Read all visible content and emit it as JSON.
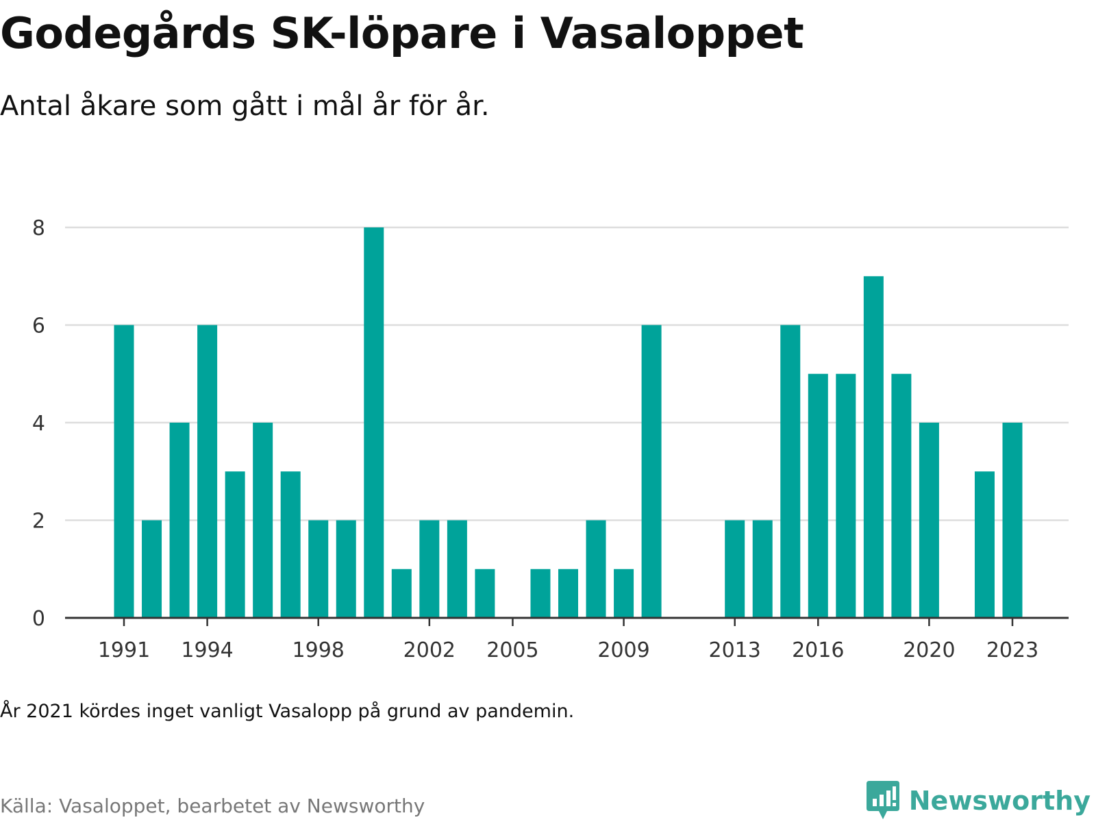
{
  "title": "Godegårds SK-löpare i Vasaloppet",
  "subtitle": "Antal åkare som gått i mål år för år.",
  "note": "År 2021 kördes inget vanligt Vasalopp på grund av pandemin.",
  "source": "Källa: Vasaloppet, bearbetet av Newsworthy",
  "brand": {
    "name": "Newsworthy",
    "icon": "newsworthy-logo-icon"
  },
  "colors": {
    "bar": "#00a39a",
    "grid": "#dddddd",
    "axis": "#333333",
    "brand": "#3ba89b"
  },
  "chart_data": {
    "type": "bar",
    "title": "Godegårds SK-löpare i Vasaloppet",
    "subtitle": "Antal åkare som gått i mål år för år.",
    "xlabel": "",
    "ylabel": "",
    "categories": [
      1991,
      1992,
      1993,
      1994,
      1995,
      1996,
      1997,
      1998,
      1999,
      2000,
      2001,
      2002,
      2003,
      2004,
      2005,
      2006,
      2007,
      2008,
      2009,
      2010,
      2011,
      2012,
      2013,
      2014,
      2015,
      2016,
      2017,
      2018,
      2019,
      2020,
      2021,
      2022,
      2023
    ],
    "values": [
      6,
      2,
      4,
      6,
      3,
      4,
      3,
      2,
      2,
      8,
      1,
      2,
      2,
      1,
      0,
      1,
      1,
      2,
      1,
      6,
      0,
      0,
      2,
      2,
      6,
      5,
      5,
      7,
      5,
      4,
      0,
      3,
      4
    ],
    "x_tick_labels": [
      "1991",
      "1994",
      "1998",
      "2002",
      "2005",
      "2009",
      "2013",
      "2016",
      "2020",
      "2023"
    ],
    "y_ticks": [
      0,
      2,
      4,
      6,
      8
    ],
    "ylim": [
      0,
      8
    ],
    "grid": true,
    "legend": "none"
  }
}
